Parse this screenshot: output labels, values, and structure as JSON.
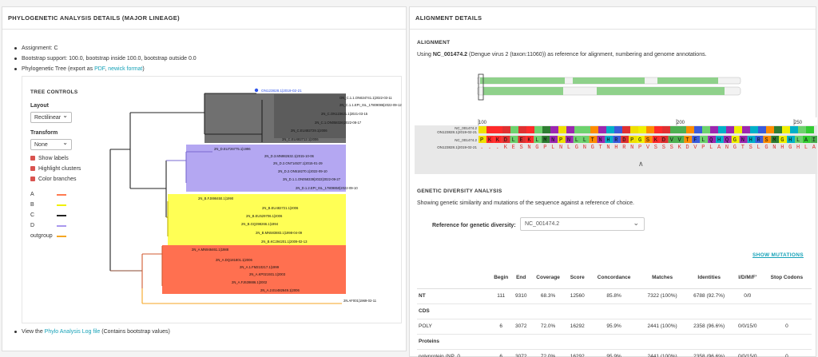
{
  "left": {
    "title": "PHYLOGENETIC ANALYSIS DETAILS (MAJOR LINEAGE)",
    "assignment": "Assignment: C",
    "bootstrap": "Bootstrap support: 100.0, bootstrap inside 100.0, bootstrap outside 0.0",
    "tree_prefix": "Phylogenetic Tree (export as ",
    "pdf_link": "PDF",
    "sep": ", ",
    "newick_link": "newick format",
    "tree_suffix": ")",
    "view_prefix": "View the ",
    "log_link": "Phylo Analysis Log file",
    "view_suffix": " (Contains bootstrap values)",
    "controls": {
      "title": "TREE CONTROLS",
      "layout_label": "Layout",
      "layout_value": "Rectilinear",
      "transform_label": "Transform",
      "transform_value": "None",
      "checks": [
        "Show labels",
        "Highlight clusters",
        "Color branches"
      ],
      "legend": [
        {
          "label": "A",
          "color": "#ff7a50"
        },
        {
          "label": "B",
          "color": "#f0f000"
        },
        {
          "label": "C",
          "color": "#222222"
        },
        {
          "label": "D",
          "color": "#a998ee"
        },
        {
          "label": "outgroup",
          "color": "#f5a623"
        }
      ]
    },
    "tree": {
      "colors": {
        "C": "#707070",
        "D": "#b4a7f2",
        "B": "#ffff55",
        "A": "#ff7050",
        "outgroup": "#ffbf40",
        "query": "#2f54eb"
      },
      "leaves": [
        {
          "label": "ON123828.1|2019-02-21",
          "clade": "query"
        },
        {
          "label": "ON_C.1.1.ON634741.1|2022-03-11",
          "clade": "C"
        },
        {
          "label": "2N_C.1.1.EPI_ISL_17809086|2022-09-12",
          "clade": "C"
        },
        {
          "label": "2N_C.ON123621.1|2021-03-15",
          "clade": "C"
        },
        {
          "label": "2N_C.1.ON058326|2022-08-17",
          "clade": "C"
        },
        {
          "label": "2N_C.EU482729.1|2006",
          "clade": "C"
        },
        {
          "label": "2N_C.EU482712.1|2006",
          "clade": "C"
        },
        {
          "label": "2N_D.EU726775.1|1996",
          "clade": "D"
        },
        {
          "label": "2N_D.3.MN982632.1|2015-10-06",
          "clade": "D"
        },
        {
          "label": "2N_D.2.ON714537.1|2015-01-29",
          "clade": "D"
        },
        {
          "label": "2N_D.2.ON518270.1|2022-09-10",
          "clade": "D"
        },
        {
          "label": "2N_D.1.1.ON058339|2022|2022-09-27",
          "clade": "D"
        },
        {
          "label": "2N_D.1.2.EPI_ISL_17809850|2022-09-10",
          "clade": "D"
        },
        {
          "label": "2N_B.FJ898450.1|1990",
          "clade": "B"
        },
        {
          "label": "2N_B.EU482721.1|2006",
          "clade": "B"
        },
        {
          "label": "2N_B.EU529706.1|2006",
          "clade": "B"
        },
        {
          "label": "2N_B.GQ398266.1|1994",
          "clade": "B"
        },
        {
          "label": "2N_B.MN583883.1|1998-04-09",
          "clade": "B"
        },
        {
          "label": "2N_B.KC294201.1|2009-02-13",
          "clade": "B"
        },
        {
          "label": "2N_A.MN946461.1|1988",
          "clade": "A"
        },
        {
          "label": "2N_A.DQ181801.1|2006",
          "clade": "A"
        },
        {
          "label": "2N_A.1.FM210217.1|1999",
          "clade": "A"
        },
        {
          "label": "2N_A.KP021931.1|2003",
          "clade": "A"
        },
        {
          "label": "2N_A.FJ639886.1|2002",
          "clade": "A"
        },
        {
          "label": "2N_A.2.EU482649.1|2006",
          "clade": "A"
        },
        {
          "label": "2N.AF001|1969-02-11",
          "clade": "outgroup"
        }
      ]
    }
  },
  "right": {
    "title": "ALIGNMENT DETAILS",
    "alignment_heading": "ALIGNMENT",
    "using": "Using ",
    "ref_acc": "NC_001474.2",
    "using_rest": " (Dengue virus 2 (taxon:11060)) as reference for alignment, numbering and genome annotations.",
    "seq": {
      "ruler": [
        "100",
        "200",
        "250"
      ],
      "row_labels": [
        "NC_001474.2",
        "ON123828.1|2019-02-21"
      ],
      "names": [
        "NC_001474.2",
        "ON123828.1|2019-02-21"
      ],
      "ref_residues": "PKKDLEKLMNPNLLTNHRDPGSKDVVTFLQHQGNHRSMGHLAIVPLFHGSQ",
      "query_residues": "...KESNGPLNLGNGTNHRNPVSSSKDVPLANGTSLGNHGHLALVSPLFDAL",
      "collapse_arrow": "∧"
    },
    "gd_heading": "GENETIC DIVERSITY ANALYSIS",
    "gd_text": "Showing genetic similarity and mutations of the sequence against a reference of choice.",
    "rf_label": "Reference for genetic diversity:",
    "rf_value": "NC_001474.2",
    "show_mutations": "SHOW MUTATIONS",
    "table": {
      "headers": [
        "",
        "Begin",
        "End",
        "Coverage",
        "Score",
        "Concordance",
        "Matches",
        "Identities",
        "I/D/M/F'",
        "Stop Codons"
      ],
      "nt": [
        "NT",
        "111",
        "9310",
        "68.3%",
        "12560",
        "85.8%",
        "7322 (100%)",
        "6788 (92.7%)",
        "0/0",
        ""
      ],
      "cds_label": "CDS",
      "poly": [
        "POLY",
        "6",
        "3072",
        "72.0%",
        "16292",
        "95.9%",
        "2441 (100%)",
        "2358 (96.6%)",
        "0/0/15/0",
        "0"
      ],
      "proteins_label": "Proteins",
      "polyprotein": [
        "polyprotein (NP_0...",
        "6",
        "3072",
        "72.0%",
        "16292",
        "95.9%",
        "2441 (100%)",
        "2358 (96.6%)",
        "0/0/15/0",
        "0"
      ]
    }
  }
}
